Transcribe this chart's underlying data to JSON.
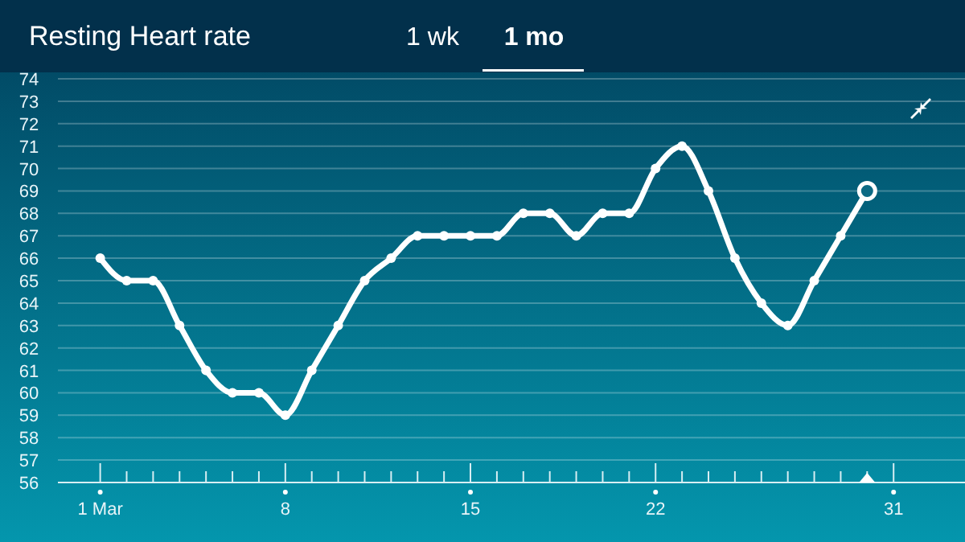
{
  "chart_data": {
    "type": "line",
    "title": "Resting Heart rate",
    "annotations": [
      "1 wk",
      "1 mo"
    ],
    "x": [
      1,
      2,
      3,
      4,
      5,
      6,
      7,
      8,
      9,
      10,
      11,
      12,
      13,
      14,
      15,
      16,
      17,
      18,
      19,
      20,
      21,
      22,
      23,
      24,
      25,
      26,
      27,
      28,
      29,
      30
    ],
    "series": [
      {
        "color": "#ffffff",
        "values": [
          66,
          65,
          65,
          63,
          61,
          60,
          60,
          59,
          61,
          63,
          65,
          66,
          67,
          67,
          67,
          67,
          68,
          68,
          67,
          68,
          68,
          70,
          71,
          69,
          66,
          64,
          63,
          65,
          67,
          69
        ]
      }
    ],
    "xlim": [
      -0.6,
      33.7
    ],
    "xticks": [
      {
        "value": 1,
        "label": "1 Mar"
      },
      {
        "value": 2,
        "label": null
      },
      {
        "value": 3,
        "label": null
      },
      {
        "value": 4,
        "label": null
      },
      {
        "value": 5,
        "label": null
      },
      {
        "value": 6,
        "label": null
      },
      {
        "value": 7,
        "label": null
      },
      8,
      {
        "value": 9,
        "label": null
      },
      {
        "value": 10,
        "label": null
      },
      {
        "value": 11,
        "label": null
      },
      {
        "value": 12,
        "label": null
      },
      {
        "value": 13,
        "label": null
      },
      {
        "value": 14,
        "label": null
      },
      15,
      {
        "value": 16,
        "label": null
      },
      {
        "value": 17,
        "label": null
      },
      {
        "value": 18,
        "label": null
      },
      {
        "value": 19,
        "label": null
      },
      {
        "value": 20,
        "label": null
      },
      {
        "value": 21,
        "label": null
      },
      22,
      {
        "value": 23,
        "label": null
      },
      {
        "value": 24,
        "label": null
      },
      {
        "value": 25,
        "label": null
      },
      {
        "value": 26,
        "label": null
      },
      {
        "value": 27,
        "label": null
      },
      {
        "value": 28,
        "label": null
      },
      {
        "value": 29,
        "label": null
      },
      {
        "value": 30,
        "label": null
      },
      31
    ],
    "ylim": [
      56,
      74
    ],
    "yticks": [
      56,
      57,
      58,
      59,
      60,
      61,
      62,
      63,
      64,
      65,
      66,
      67,
      68,
      69,
      70,
      71,
      72,
      73,
      74
    ],
    "grid": "y",
    "marker": "circle",
    "line_style": "solid"
  }
}
